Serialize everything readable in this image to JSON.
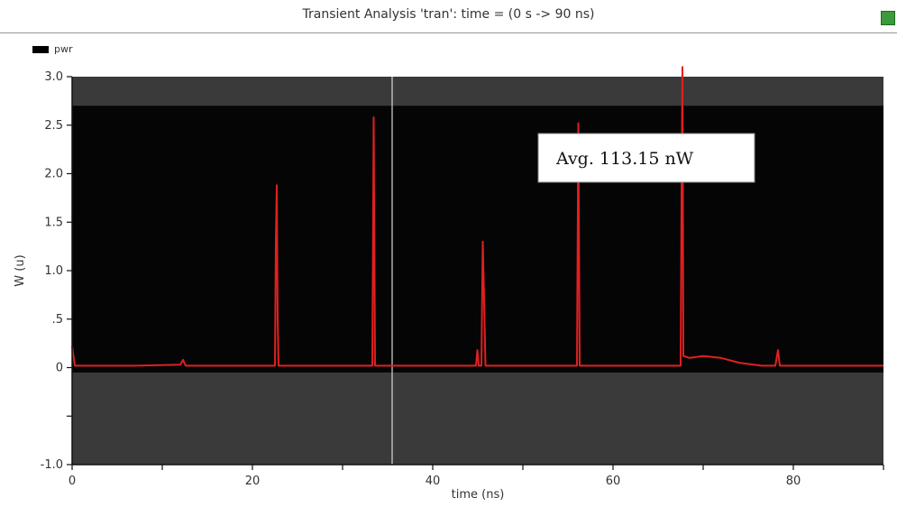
{
  "window": {
    "corner_label": "",
    "title": "Transient Analysis 'tran': time = (0 s -> 90 ns)",
    "status_color": "#3b9a3b"
  },
  "legend": {
    "label": "pwr"
  },
  "annotation": {
    "text": "Avg. 113.15 nW"
  },
  "chart_data": {
    "type": "line",
    "title": "Transient Analysis 'tran': time = (0 s -> 90 ns)",
    "xlabel": "time (ns)",
    "ylabel": "W (u)",
    "xlim": [
      0,
      90
    ],
    "ylim": [
      -1.0,
      3.0
    ],
    "xticks": [
      0,
      10,
      20,
      30,
      40,
      50,
      60,
      70,
      80,
      90
    ],
    "xtick_labels": [
      "0",
      "",
      "20",
      "",
      "40",
      "",
      "60",
      "",
      "80",
      ""
    ],
    "yticks": [
      -1.0,
      -0.5,
      0.0,
      0.5,
      1.0,
      1.5,
      2.0,
      2.5,
      3.0
    ],
    "ytick_labels": [
      "-1.0",
      "",
      "0",
      ".5",
      "1.0",
      "1.5",
      "2.0",
      "2.5",
      "3.0"
    ],
    "grid": false,
    "background_color": "#050505",
    "band_color": "#3a3a3a",
    "band_ranges": [
      [
        2.7,
        3.0
      ],
      [
        -1.0,
        -0.05
      ]
    ],
    "cursor_x": 35.5,
    "series": [
      {
        "name": "pwr",
        "color": "#e02020",
        "points": [
          [
            0.0,
            0.22
          ],
          [
            0.3,
            0.02
          ],
          [
            7.0,
            0.02
          ],
          [
            12.0,
            0.03
          ],
          [
            12.3,
            0.08
          ],
          [
            12.6,
            0.02
          ],
          [
            16.0,
            0.02
          ],
          [
            22.5,
            0.02
          ],
          [
            22.6,
            1.3
          ],
          [
            22.7,
            1.88
          ],
          [
            22.8,
            0.5
          ],
          [
            22.9,
            0.02
          ],
          [
            31.0,
            0.02
          ],
          [
            33.3,
            0.02
          ],
          [
            33.45,
            2.58
          ],
          [
            33.6,
            0.02
          ],
          [
            35.0,
            0.02
          ],
          [
            39.0,
            0.02
          ],
          [
            44.8,
            0.02
          ],
          [
            44.95,
            0.18
          ],
          [
            45.1,
            0.02
          ],
          [
            45.4,
            0.02
          ],
          [
            45.55,
            1.3
          ],
          [
            45.7,
            0.7
          ],
          [
            45.85,
            0.02
          ],
          [
            50.0,
            0.02
          ],
          [
            56.0,
            0.02
          ],
          [
            56.15,
            2.52
          ],
          [
            56.3,
            0.02
          ],
          [
            57.5,
            0.02
          ],
          [
            67.5,
            0.02
          ],
          [
            67.6,
            1.75
          ],
          [
            67.7,
            3.1
          ],
          [
            67.8,
            0.12
          ],
          [
            68.5,
            0.1
          ],
          [
            70.0,
            0.12
          ],
          [
            72.0,
            0.1
          ],
          [
            74.0,
            0.05
          ],
          [
            76.5,
            0.02
          ],
          [
            78.0,
            0.02
          ],
          [
            78.3,
            0.18
          ],
          [
            78.5,
            0.02
          ],
          [
            83.0,
            0.02
          ],
          [
            90.0,
            0.02
          ]
        ]
      }
    ]
  }
}
